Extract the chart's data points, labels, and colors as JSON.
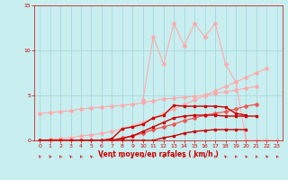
{
  "x": [
    0,
    1,
    2,
    3,
    4,
    5,
    6,
    7,
    8,
    9,
    10,
    11,
    12,
    13,
    14,
    15,
    16,
    17,
    18,
    19,
    20,
    21,
    22,
    23
  ],
  "series": [
    {
      "name": "light_linear1",
      "color": "#ffaaaa",
      "lw": 0.8,
      "marker": "D",
      "ms": 2,
      "x": [
        0,
        1,
        2,
        3,
        4,
        5,
        6,
        7,
        8,
        9,
        10,
        11,
        12,
        13,
        14,
        15,
        16,
        17,
        18,
        19,
        20,
        21,
        22,
        23
      ],
      "y": [
        3.0,
        3.1,
        3.2,
        3.3,
        3.5,
        3.6,
        3.7,
        3.8,
        3.9,
        4.0,
        4.2,
        4.4,
        4.6,
        4.7,
        4.8,
        4.9,
        5.0,
        5.2,
        5.4,
        5.6,
        5.8,
        6.0,
        null,
        null
      ]
    },
    {
      "name": "light_linear2",
      "color": "#ffaaaa",
      "lw": 0.8,
      "marker": "D",
      "ms": 2,
      "x": [
        0,
        1,
        2,
        3,
        4,
        5,
        6,
        7,
        8,
        9,
        10,
        11,
        12,
        13,
        14,
        15,
        16,
        17,
        18,
        19,
        20,
        21,
        22,
        23
      ],
      "y": [
        0.0,
        0.1,
        0.2,
        0.3,
        0.5,
        0.6,
        0.8,
        1.0,
        1.3,
        1.6,
        2.0,
        2.5,
        3.0,
        3.5,
        4.0,
        4.5,
        5.0,
        5.5,
        6.0,
        6.5,
        7.0,
        7.5,
        8.0,
        null
      ]
    },
    {
      "name": "light_peaked",
      "color": "#ffaaaa",
      "lw": 0.8,
      "marker": "D",
      "ms": 2,
      "x": [
        10,
        11,
        12,
        13,
        14,
        15,
        16,
        17,
        18,
        19,
        20,
        21,
        22,
        23
      ],
      "y": [
        4.5,
        11.5,
        8.5,
        13.0,
        10.5,
        13.0,
        11.5,
        13.0,
        8.5,
        6.5,
        0,
        0,
        0,
        0
      ]
    },
    {
      "name": "medium_red",
      "color": "#ee5555",
      "lw": 0.9,
      "marker": "D",
      "ms": 2,
      "x": [
        0,
        1,
        2,
        3,
        4,
        5,
        6,
        7,
        8,
        9,
        10,
        11,
        12,
        13,
        14,
        15,
        16,
        17,
        18,
        19,
        20,
        21,
        22,
        23
      ],
      "y": [
        0.0,
        0.0,
        0.0,
        0.0,
        0.0,
        0.0,
        0.0,
        0.0,
        0.3,
        0.5,
        0.8,
        1.2,
        1.5,
        1.8,
        2.2,
        2.5,
        2.8,
        3.0,
        3.2,
        3.5,
        3.8,
        4.0,
        null,
        null
      ]
    },
    {
      "name": "dark1",
      "color": "#cc0000",
      "lw": 1.0,
      "marker": "s",
      "ms": 2,
      "x": [
        0,
        1,
        2,
        3,
        4,
        5,
        6,
        7,
        8,
        9,
        10,
        11,
        12,
        13,
        14,
        15,
        16,
        17,
        18,
        19,
        20,
        21,
        22,
        23
      ],
      "y": [
        0,
        0,
        0,
        0,
        0,
        0,
        0,
        0.2,
        1.3,
        1.5,
        1.8,
        2.5,
        2.8,
        3.9,
        3.8,
        3.8,
        3.8,
        3.8,
        3.7,
        3.0,
        2.8,
        null,
        null,
        null
      ]
    },
    {
      "name": "dark2",
      "color": "#cc0000",
      "lw": 1.0,
      "marker": "s",
      "ms": 2,
      "x": [
        0,
        1,
        2,
        3,
        4,
        5,
        6,
        7,
        8,
        9,
        10,
        11,
        12,
        13,
        14,
        15,
        16,
        17,
        18,
        19,
        20,
        21,
        22,
        23
      ],
      "y": [
        0,
        0,
        0,
        0,
        0,
        0,
        0,
        0,
        0.2,
        0.5,
        1.0,
        1.5,
        2.0,
        2.5,
        2.7,
        2.8,
        2.8,
        2.8,
        2.7,
        2.7,
        2.7,
        2.7,
        null,
        null
      ]
    },
    {
      "name": "dark3",
      "color": "#cc0000",
      "lw": 1.0,
      "marker": "s",
      "ms": 2,
      "x": [
        0,
        1,
        2,
        3,
        4,
        5,
        6,
        7,
        8,
        9,
        10,
        11,
        12,
        13,
        14,
        15,
        16,
        17,
        18,
        19,
        20,
        21,
        22,
        23
      ],
      "y": [
        0,
        0,
        0,
        0,
        0,
        0,
        0,
        0,
        0,
        0,
        0,
        0,
        0.3,
        0.5,
        0.8,
        1.0,
        1.1,
        1.2,
        1.2,
        1.2,
        1.2,
        null,
        null,
        null
      ]
    }
  ],
  "wind_arrows": [
    [
      225,
      225,
      225,
      225,
      225,
      225,
      225,
      225,
      180,
      135,
      90,
      45,
      45,
      45,
      90,
      135,
      225,
      225,
      225,
      225,
      225,
      225,
      225,
      225
    ]
  ],
  "background_color": "#c8eef0",
  "grid_color": "#a0d4d8",
  "axis_color": "#cc0000",
  "ylim": [
    0,
    15
  ],
  "xlim": [
    -0.5,
    23.5
  ],
  "xlabel": "Vent moyen/en rafales ( km/h )",
  "yticks": [
    0,
    5,
    10,
    15
  ],
  "xticks": [
    0,
    1,
    2,
    3,
    4,
    5,
    6,
    7,
    8,
    9,
    10,
    11,
    12,
    13,
    14,
    15,
    16,
    17,
    18,
    19,
    20,
    21,
    22,
    23
  ]
}
